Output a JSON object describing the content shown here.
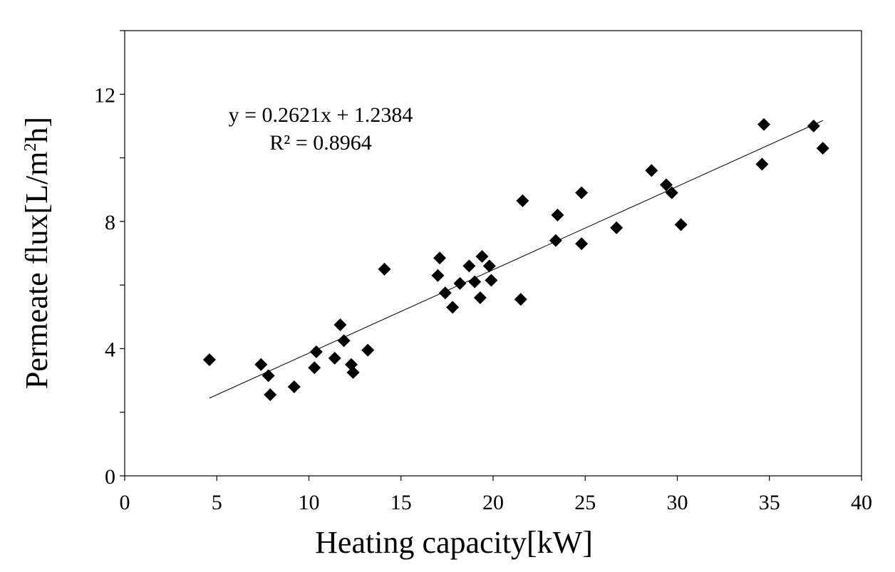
{
  "chart_data": {
    "type": "scatter",
    "xlabel": "Heating capacity[kW]",
    "ylabel_prefix": "Permeate flux[L/m",
    "ylabel_sup": "2",
    "ylabel_suffix": "h]",
    "xlim": [
      0,
      40
    ],
    "ylim": [
      0,
      14
    ],
    "x_ticks": [
      0,
      5,
      10,
      15,
      20,
      25,
      30,
      35,
      40
    ],
    "x_tick_labels": [
      "0",
      "5",
      "10",
      "15",
      "20",
      "25",
      "30",
      "35",
      "40"
    ],
    "y_ticks": [
      0,
      2,
      4,
      6,
      8,
      10,
      12,
      14
    ],
    "y_tick_labels": [
      "0",
      "",
      "4",
      "",
      "8",
      "",
      "12",
      ""
    ],
    "grid": false,
    "marker": "diamond",
    "marker_color": "#000000",
    "points": [
      [
        4.6,
        3.65
      ],
      [
        7.4,
        3.5
      ],
      [
        7.8,
        3.15
      ],
      [
        7.9,
        2.55
      ],
      [
        9.2,
        2.8
      ],
      [
        10.3,
        3.4
      ],
      [
        10.4,
        3.9
      ],
      [
        11.4,
        3.7
      ],
      [
        11.7,
        4.75
      ],
      [
        11.9,
        4.25
      ],
      [
        12.3,
        3.5
      ],
      [
        12.4,
        3.25
      ],
      [
        13.2,
        3.95
      ],
      [
        14.1,
        6.5
      ],
      [
        17.0,
        6.3
      ],
      [
        17.1,
        6.85
      ],
      [
        17.4,
        5.75
      ],
      [
        17.8,
        5.3
      ],
      [
        18.2,
        6.05
      ],
      [
        18.7,
        6.6
      ],
      [
        19.0,
        6.1
      ],
      [
        19.3,
        5.6
      ],
      [
        19.4,
        6.9
      ],
      [
        19.8,
        6.6
      ],
      [
        19.9,
        6.15
      ],
      [
        21.5,
        5.55
      ],
      [
        21.6,
        8.65
      ],
      [
        23.4,
        7.4
      ],
      [
        23.5,
        8.2
      ],
      [
        24.8,
        8.9
      ],
      [
        24.8,
        7.3
      ],
      [
        26.7,
        7.8
      ],
      [
        28.6,
        9.6
      ],
      [
        29.4,
        9.15
      ],
      [
        29.7,
        8.9
      ],
      [
        30.2,
        7.9
      ],
      [
        34.6,
        9.8
      ],
      [
        34.7,
        11.05
      ],
      [
        37.4,
        11.0
      ],
      [
        37.9,
        10.3
      ]
    ],
    "trendline": {
      "slope": 0.2621,
      "intercept": 1.2384,
      "x_range": [
        4.6,
        37.9
      ],
      "color": "#000000"
    },
    "annotations": {
      "equation": "y = 0.2621x + 1.2384",
      "r_squared": "R² = 0.8964"
    }
  }
}
